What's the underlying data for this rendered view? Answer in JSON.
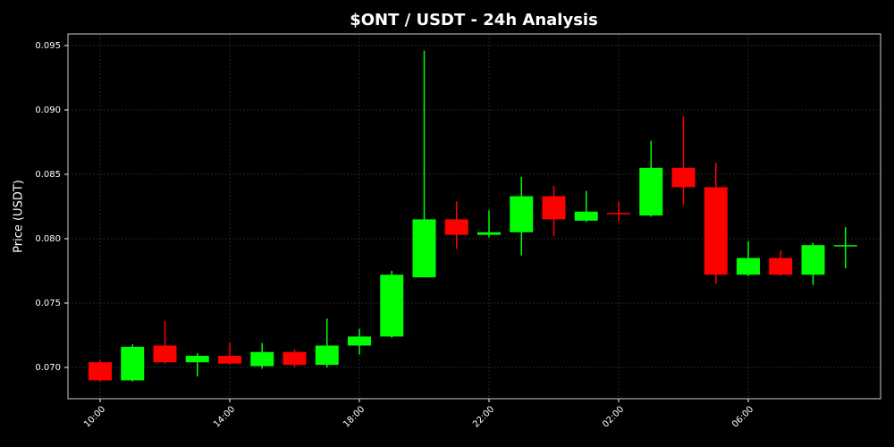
{
  "chart_data": {
    "type": "candlestick",
    "title": "$ONT / USDT - 24h Analysis",
    "y_label": "Price (USDT)",
    "categories": [
      "10:00",
      null,
      null,
      null,
      "14:00",
      null,
      null,
      null,
      "18:00",
      null,
      null,
      null,
      "22:00",
      null,
      null,
      null,
      "02:00",
      null,
      null,
      null,
      "06:00",
      null,
      null,
      null
    ],
    "series": [
      {
        "open": [
          0.0704,
          0.069,
          0.0717,
          0.0704,
          0.0709,
          0.0701,
          0.0712,
          0.0702,
          0.0717,
          0.0724,
          0.077,
          0.0815,
          0.0803,
          0.0805,
          0.0833,
          0.0814,
          0.082,
          0.0818,
          0.0855,
          0.084,
          0.0772,
          0.0785,
          0.0772,
          0.0795
        ],
        "high": [
          0.0706,
          0.0718,
          0.0736,
          0.0711,
          0.0719,
          0.0719,
          0.0714,
          0.0738,
          0.073,
          0.0775,
          0.0946,
          0.0829,
          0.0822,
          0.0848,
          0.0841,
          0.0837,
          0.0829,
          0.0876,
          0.0895,
          0.0859,
          0.0798,
          0.0791,
          0.0797,
          0.0809
        ],
        "low": [
          0.0689,
          0.0689,
          0.0703,
          0.0693,
          0.0702,
          0.0699,
          0.07,
          0.07,
          0.071,
          0.0723,
          0.077,
          0.0792,
          0.0801,
          0.0787,
          0.0802,
          0.0813,
          0.0813,
          0.0817,
          0.0826,
          0.0765,
          0.0771,
          0.0771,
          0.0764,
          0.0777
        ],
        "close": [
          0.069,
          0.0716,
          0.0704,
          0.0709,
          0.0703,
          0.0712,
          0.0702,
          0.0717,
          0.0724,
          0.0772,
          0.0815,
          0.0803,
          0.0805,
          0.0833,
          0.0815,
          0.0821,
          0.0819,
          0.0855,
          0.084,
          0.0772,
          0.0785,
          0.0772,
          0.0795,
          0.0795
        ]
      }
    ],
    "up_color": "#00ff00",
    "down_color": "#ff0000",
    "ylim": [
      0.06757,
      0.0959
    ],
    "yticks": [
      {
        "value": 0.07,
        "label": "0.070"
      },
      0.075,
      {
        "value": 0.08,
        "label": "0.080"
      },
      0.085,
      {
        "value": 0.09,
        "label": "0.090"
      },
      0.095
    ],
    "grid": true
  }
}
